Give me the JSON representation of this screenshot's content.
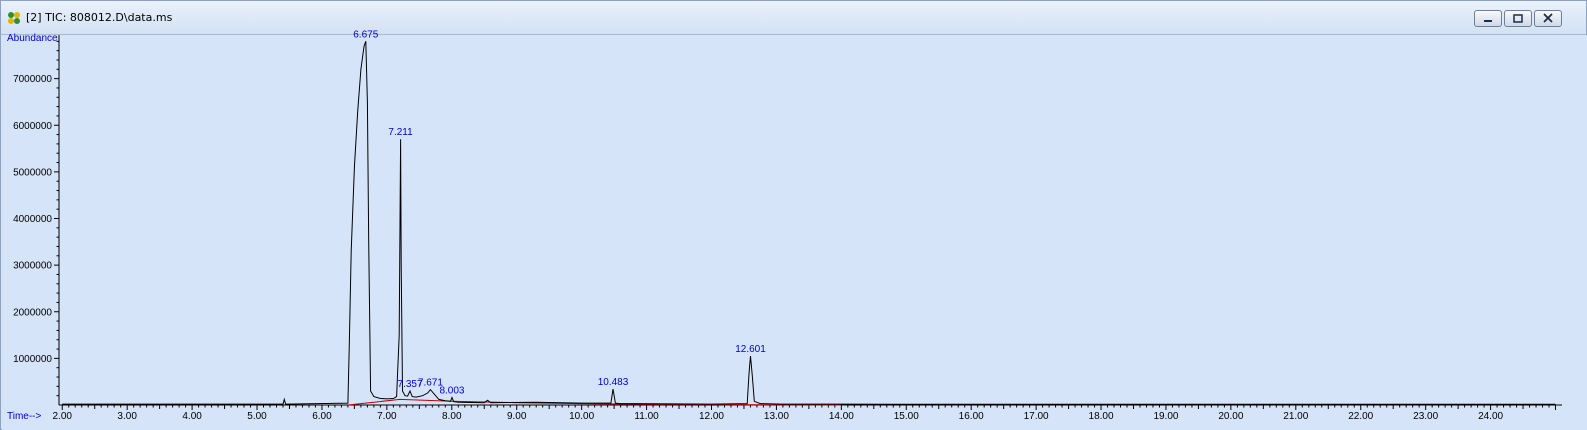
{
  "window": {
    "title": "[2] TIC: 808012.D\\data.ms",
    "icon": "chromatogram-app-icon"
  },
  "colors": {
    "background": "#d6e4fa",
    "trace": "#000000",
    "baseline": "#c00000",
    "peak_label": "#0000cc",
    "axis": "#000000"
  },
  "chart_data": {
    "type": "line",
    "title": "",
    "ylabel": "Abundance",
    "xlabel": "Time-->",
    "xlim": [
      1.95,
      25.1
    ],
    "ylim": [
      0,
      7850000
    ],
    "x_ticks": [
      2,
      3,
      4,
      5,
      6,
      7,
      8,
      9,
      10,
      11,
      12,
      13,
      14,
      15,
      16,
      17,
      18,
      19,
      20,
      21,
      22,
      23,
      24
    ],
    "x_tick_labels": [
      "2.00",
      "3.00",
      "4.00",
      "5.00",
      "6.00",
      "7.00",
      "8.00",
      "9.00",
      "10.00",
      "11.00",
      "12.00",
      "13.00",
      "14.00",
      "15.00",
      "16.00",
      "17.00",
      "18.00",
      "19.00",
      "20.00",
      "21.00",
      "22.00",
      "23.00",
      "24.00"
    ],
    "y_ticks": [
      1000000,
      2000000,
      3000000,
      4000000,
      5000000,
      6000000,
      7000000
    ],
    "y_tick_labels": [
      "1000000",
      "2000000",
      "3000000",
      "4000000",
      "5000000",
      "6000000",
      "7000000"
    ],
    "grid": false,
    "series": [
      {
        "x": [
          2.0,
          5.4,
          5.42,
          5.44,
          6.4,
          6.42,
          6.45,
          6.5,
          6.55,
          6.6,
          6.63,
          6.65,
          6.675,
          6.7,
          6.72,
          6.75,
          6.8,
          6.9,
          7.0,
          7.1,
          7.15,
          7.19,
          7.205,
          7.211,
          7.22,
          7.24,
          7.28,
          7.32,
          7.357,
          7.39,
          7.45,
          7.55,
          7.63,
          7.671,
          7.72,
          7.8,
          7.9,
          7.98,
          8.003,
          8.03,
          8.1,
          8.5,
          8.55,
          8.6,
          9.3,
          10.0,
          10.45,
          10.483,
          10.52,
          10.6,
          12.0,
          12.55,
          12.58,
          12.601,
          12.63,
          12.66,
          12.75,
          13.1,
          14.0,
          15.0,
          20.0,
          25.0
        ],
        "y": [
          20000,
          20000,
          120000,
          20000,
          40000,
          1200000,
          3300000,
          5100000,
          6300000,
          7200000,
          7500000,
          7700000,
          7800000,
          6500000,
          3500000,
          300000,
          180000,
          140000,
          130000,
          140000,
          180000,
          1500000,
          4500000,
          5700000,
          3000000,
          300000,
          200000,
          190000,
          300000,
          180000,
          170000,
          200000,
          260000,
          330000,
          250000,
          120000,
          90000,
          80000,
          160000,
          70000,
          60000,
          50000,
          100000,
          50000,
          60000,
          40000,
          40000,
          340000,
          40000,
          30000,
          20000,
          30000,
          700000,
          1050000,
          600000,
          80000,
          30000,
          20000,
          20000,
          15000,
          15000,
          15000
        ]
      }
    ],
    "baseline_x": [
      6.4,
      7.2,
      8.0,
      9.0,
      10.0,
      11.0,
      12.0,
      13.0,
      14.0
    ],
    "baseline_y": [
      0,
      120000,
      80000,
      50000,
      30000,
      15000,
      10000,
      5000,
      0
    ],
    "peaks": [
      {
        "label": "6.675",
        "x": 6.675,
        "y": 7800000
      },
      {
        "label": "7.211",
        "x": 7.211,
        "y": 5700000
      },
      {
        "label": "7.357",
        "x": 7.357,
        "y": 300000
      },
      {
        "label": "7.671",
        "x": 7.671,
        "y": 330000
      },
      {
        "label": "8.003",
        "x": 8.003,
        "y": 160000
      },
      {
        "label": "10.483",
        "x": 10.483,
        "y": 340000
      },
      {
        "label": "12.601",
        "x": 12.601,
        "y": 1050000
      }
    ]
  }
}
